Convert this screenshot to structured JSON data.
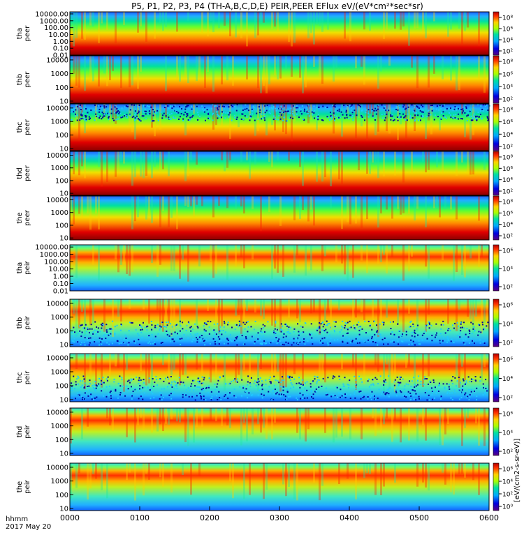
{
  "title": "P5, P1, P2, P3, P4 (TH-A,B,C,D,E) PEIR,PEER EFlux eV/(eV*cm²*sec*sr)",
  "footer": {
    "time_label": "hhmm",
    "date_label": "2017 May 20"
  },
  "colorbar_unit": "[eV/(cm2-s-sr-eV)]",
  "chart_data": {
    "type": "heatmap",
    "x_ticks": [
      "0000",
      "0100",
      "0200",
      "0300",
      "0400",
      "0500",
      "0600"
    ],
    "x_range_hhmm": [
      "0000",
      "0600"
    ],
    "y_scale": "log",
    "panels": [
      {
        "probe": "tha",
        "species": "peer",
        "ylim": [
          0.01,
          20000
        ],
        "y_ticks": [
          "10000.00",
          "1000.00",
          "100.00",
          "10.00",
          "1.00",
          "0.10",
          "0.01"
        ],
        "cbar_ticks": [
          "10⁸",
          "10⁶",
          "10⁴",
          "10²"
        ]
      },
      {
        "probe": "thb",
        "species": "peer",
        "ylim": [
          7,
          20000
        ],
        "y_ticks": [
          "10000",
          "1000",
          "100",
          "10"
        ],
        "cbar_ticks": [
          "10⁸",
          "10⁶",
          "10⁴",
          "10²"
        ]
      },
      {
        "probe": "thc",
        "species": "peer",
        "ylim": [
          7,
          20000
        ],
        "y_ticks": [
          "10000",
          "1000",
          "100",
          "10"
        ],
        "cbar_ticks": [
          "10⁸",
          "10⁶",
          "10⁴",
          "10²"
        ]
      },
      {
        "probe": "thd",
        "species": "peer",
        "ylim": [
          7,
          20000
        ],
        "y_ticks": [
          "10000",
          "1000",
          "100",
          "10"
        ],
        "cbar_ticks": [
          "10⁸",
          "10⁶",
          "10⁴",
          "10²"
        ]
      },
      {
        "probe": "the",
        "species": "peer",
        "ylim": [
          7,
          20000
        ],
        "y_ticks": [
          "10000",
          "1000",
          "100",
          "10"
        ],
        "cbar_ticks": [
          "10⁸",
          "10⁶",
          "10⁴",
          "10²"
        ]
      },
      {
        "probe": "tha",
        "species": "peir",
        "ylim": [
          0.01,
          20000
        ],
        "y_ticks": [
          "10000.00",
          "1000.00",
          "100.00",
          "10.00",
          "1.00",
          "0.10",
          "0.01"
        ],
        "cbar_ticks": [
          "10⁶",
          "10⁴",
          "10²"
        ]
      },
      {
        "probe": "thb",
        "species": "peir",
        "ylim": [
          7,
          20000
        ],
        "y_ticks": [
          "10000",
          "1000",
          "100",
          "10"
        ],
        "cbar_ticks": [
          "10⁶",
          "10⁴",
          "10²"
        ]
      },
      {
        "probe": "thc",
        "species": "peir",
        "ylim": [
          7,
          20000
        ],
        "y_ticks": [
          "10000",
          "1000",
          "100",
          "10"
        ],
        "cbar_ticks": [
          "10⁶",
          "10⁴",
          "10²"
        ]
      },
      {
        "probe": "thd",
        "species": "peir",
        "ylim": [
          7,
          20000
        ],
        "y_ticks": [
          "10000",
          "1000",
          "100",
          "10"
        ],
        "cbar_ticks": [
          "10⁶",
          "10⁴",
          "10²"
        ]
      },
      {
        "probe": "the",
        "species": "peir",
        "ylim": [
          7,
          20000
        ],
        "y_ticks": [
          "10000",
          "1000",
          "100",
          "10"
        ],
        "cbar_ticks": [
          "10⁶",
          "10⁴",
          "10²",
          "10⁰"
        ]
      }
    ]
  }
}
